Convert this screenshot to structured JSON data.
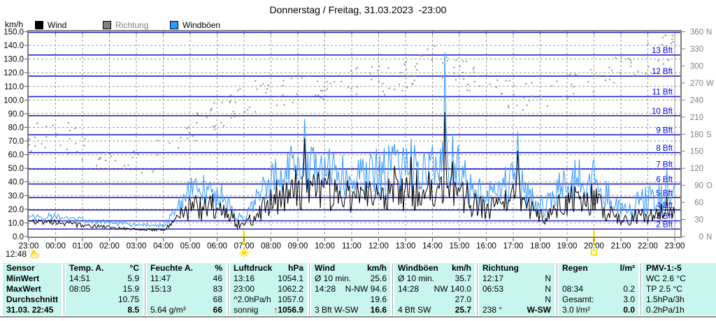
{
  "window": {
    "title": "Donnerstag / Freitag, 31.03.2023  -23:00"
  },
  "chart_data": {
    "type": "line",
    "title": "Donnerstag / Freitag, 31.03.2023  -23:00",
    "y_left_label": "km/h",
    "y_left": {
      "min": 0,
      "max": 150,
      "tick_step": 10
    },
    "y_right": {
      "unit": "degrees",
      "min": 0,
      "max": 360,
      "tick_step": 30,
      "direction_letters": {
        "0": "N",
        "90": "O",
        "180": "S",
        "270": "W",
        "360": "N"
      }
    },
    "x_tick_labels": [
      "23:00",
      "00:00",
      "01:00",
      "02:00",
      "03:00",
      "04:00",
      "05:00",
      "06:00",
      "07:00",
      "08:00",
      "09:00",
      "10:00",
      "11:00",
      "12:00",
      "13:00",
      "14:00",
      "15:00",
      "16:00",
      "17:00",
      "18:00",
      "19:00",
      "20:00",
      "21:00",
      "22:00",
      "23:00"
    ],
    "legend": [
      {
        "label": "Wind",
        "color": "#000000",
        "text_color": "#000000"
      },
      {
        "label": "Richtung",
        "color": "#808080",
        "text_color": "#808080"
      },
      {
        "label": "Windböen",
        "color": "#3399FF",
        "text_color": "#000000"
      }
    ],
    "beaufort_lines_kmh": [
      5.5,
      11.5,
      19.5,
      28.5,
      38.5,
      49.5,
      61.5,
      74.5,
      88.5,
      102.5,
      117.5,
      133.0,
      149.5
    ],
    "beaufort_labels": [
      {
        "bft": 2,
        "text": "2 Bft"
      },
      {
        "bft": 3,
        "text": "3 Bft"
      },
      {
        "bft": 4,
        "text": "4 Bft"
      },
      {
        "bft": 5,
        "text": "5 Bft"
      },
      {
        "bft": 6,
        "text": "6 Bft"
      },
      {
        "bft": 7,
        "text": "7 Bft"
      },
      {
        "bft": 8,
        "text": "8 Bft"
      },
      {
        "bft": 9,
        "text": "9 Bft"
      },
      {
        "bft": 10,
        "text": "10 Bft"
      },
      {
        "bft": 11,
        "text": "11 Bft"
      },
      {
        "bft": 12,
        "text": "12 Bft"
      },
      {
        "bft": 13,
        "text": "13 Bft"
      }
    ],
    "grid": {
      "h_dashed_every_kmh": 10,
      "v_dashed_every_hour": 1
    },
    "colors": {
      "wind_line": "#000000",
      "gust_line": "#3399FF",
      "direction_dots": "#8C8C8C",
      "beaufort_line": "#2222CC",
      "bft_label": "#0000E0",
      "grid_dashed": "#999999",
      "frame": "#808080",
      "right_axis_text": "#808080",
      "sun_marker": "#FFE000"
    },
    "sunshine_duration": "12:48",
    "sunrise_mark_label": "07:00",
    "sunset_mark_label": "20:00",
    "extremes": {
      "wind_max": {
        "time": "14:28",
        "dir": "N-NW",
        "kmh": 94.6
      },
      "gust_max": {
        "time": "14:28",
        "dir": "NW",
        "kmh": 140.0
      }
    },
    "series": [
      {
        "name": "Wind",
        "unit": "km/h",
        "hours_after_start": [
          0,
          1,
          2,
          3,
          4,
          5,
          6,
          7,
          8,
          9,
          10,
          11,
          12,
          13,
          14,
          15,
          16,
          17,
          18,
          19,
          20,
          21,
          22,
          23,
          24
        ],
        "hourly_mean_estimate": [
          11,
          11,
          8,
          7,
          5,
          5,
          20,
          22,
          7,
          27,
          36,
          33,
          28,
          30,
          33,
          35,
          32,
          18,
          30,
          14,
          26,
          27,
          11,
          16,
          20
        ]
      },
      {
        "name": "Windböen",
        "unit": "km/h",
        "hours_after_start": [
          0,
          1,
          2,
          3,
          4,
          5,
          6,
          7,
          8,
          9,
          10,
          11,
          12,
          13,
          14,
          15,
          16,
          17,
          18,
          19,
          20,
          21,
          22,
          23,
          24
        ],
        "hourly_mean_estimate": [
          13,
          15,
          12,
          10,
          8,
          8,
          30,
          33,
          13,
          38,
          50,
          46,
          40,
          45,
          48,
          50,
          46,
          27,
          44,
          20,
          38,
          40,
          17,
          26,
          30
        ]
      },
      {
        "name": "Richtung",
        "unit": "deg",
        "style": "scatter",
        "hours_after_start": [
          0,
          1,
          2,
          3,
          4,
          5,
          6,
          7,
          8,
          9,
          10,
          11,
          12,
          13,
          14,
          15,
          16,
          17,
          18,
          19,
          20,
          21,
          22,
          23,
          24
        ],
        "hourly_mean_estimate": [
          175,
          185,
          160,
          140,
          135,
          145,
          185,
          215,
          240,
          255,
          262,
          268,
          270,
          272,
          285,
          310,
          290,
          265,
          250,
          245,
          260,
          272,
          295,
          315,
          335
        ]
      }
    ],
    "gust_peaks_estimate": [
      {
        "hour": 6.2,
        "wind": 30,
        "gust": 43,
        "w": 0.12
      },
      {
        "hour": 10.25,
        "wind": 72,
        "gust": 86,
        "w": 0.06
      },
      {
        "hour": 11.15,
        "wind": 55,
        "gust": 72,
        "w": 0.05
      },
      {
        "hour": 13.6,
        "wind": 58,
        "gust": 76,
        "w": 0.05
      },
      {
        "hour": 14.2,
        "wind": 60,
        "gust": 74,
        "w": 0.05
      },
      {
        "hour": 15.467,
        "wind": 94.6,
        "gust": 140,
        "w": 0.045
      },
      {
        "hour": 15.75,
        "wind": 55,
        "gust": 75,
        "w": 0.04
      },
      {
        "hour": 18.17,
        "wind": 63,
        "gust": 77,
        "w": 0.07
      },
      {
        "hour": 20.3,
        "wind": 38,
        "gust": 58,
        "w": 0.05
      },
      {
        "hour": 23.7,
        "wind": 30,
        "gust": 50,
        "w": 0.06
      }
    ],
    "noise": {
      "seed": 7,
      "amp": 0.9,
      "calm_amp": 0.4,
      "calm_until_hour": 5.5,
      "points_per_hour": 24,
      "scatter_count": 270,
      "scatter_jitter_deg": 55
    }
  },
  "table": {
    "columns": [
      {
        "id": "sensor",
        "header_l": "Sensor",
        "header_r": "",
        "rows": [
          {
            "l": "MinWert",
            "r": ""
          },
          {
            "l": "MaxWert",
            "r": ""
          },
          {
            "l": "Durchschnitt",
            "r": ""
          },
          {
            "l": "31.03. 22:45",
            "r": ""
          }
        ]
      },
      {
        "id": "temp",
        "header_l": "Temp. A.",
        "header_r": "°C",
        "rows": [
          {
            "l": "14:51",
            "r": "5.9"
          },
          {
            "l": "08:05",
            "r": "15.9"
          },
          {
            "l": "",
            "r": "10.75"
          },
          {
            "l": "",
            "r": "8.5",
            "bold": true
          }
        ]
      },
      {
        "id": "feuchte",
        "header_l": "Feuchte A.",
        "header_r": "%",
        "rows": [
          {
            "l": "11:47",
            "r": "46"
          },
          {
            "l": "15:13",
            "r": "83"
          },
          {
            "l": "",
            "r": "68"
          },
          {
            "l": "5.64 g/m³",
            "r": "66",
            "bold": true
          }
        ]
      },
      {
        "id": "luftdruck",
        "header_l": "Luftdruck",
        "header_r": "hPa",
        "rows": [
          {
            "l": "13:16",
            "r": "1054.1"
          },
          {
            "l": "23:00",
            "r": "1062.2"
          },
          {
            "l": "^2.0hPa/h",
            "r": "1057.0"
          },
          {
            "l": "sonnig",
            "r": "1056.9",
            "arrow": "↑",
            "bold": true
          }
        ]
      },
      {
        "id": "wind",
        "header_l": "Wind",
        "header_r": "km/h",
        "rows": [
          {
            "l": "Ø 10 min.",
            "r": "25.6"
          },
          {
            "l": "14:28",
            "r": "N-NW 94.6"
          },
          {
            "l": "",
            "r": "19.6"
          },
          {
            "l": "3 Bft W-SW",
            "r": "16.6",
            "bold": true
          }
        ]
      },
      {
        "id": "windboeen",
        "header_l": "Windböen",
        "header_r": "km/h",
        "rows": [
          {
            "l": "Ø 10 min.",
            "r": "35.7"
          },
          {
            "l": "14:28",
            "r": "NW 140.0"
          },
          {
            "l": "",
            "r": "27.0"
          },
          {
            "l": "4 Bft SW",
            "r": "25.7",
            "bold": true
          }
        ]
      },
      {
        "id": "richtung",
        "header_l": "Richtung",
        "header_r": "",
        "rows": [
          {
            "l": "12:17",
            "r": "N"
          },
          {
            "l": "06:53",
            "r": "N"
          },
          {
            "l": "",
            "r": "N"
          },
          {
            "l": "238 °",
            "r": "W-SW",
            "bold": true
          }
        ]
      },
      {
        "id": "regen",
        "header_l": "Regen",
        "header_r": "l/m²",
        "rows": [
          {
            "l": "",
            "r": ""
          },
          {
            "l": "08:34",
            "r": "0.2"
          },
          {
            "l": "Gesamt:",
            "r": "3.0"
          },
          {
            "l": "3.0 l/m²",
            "r": "0.0",
            "bold": true
          }
        ]
      },
      {
        "id": "pmv",
        "header_l": "PMV-1:-5",
        "header_r": "",
        "rows": [
          {
            "l": "WC 2.6 °C",
            "r": ""
          },
          {
            "l": "TP 2.5 °C",
            "r": ""
          },
          {
            "l": "1.5hPa/3h",
            "r": ""
          },
          {
            "l": "0.2hPa/1h",
            "r": ""
          }
        ]
      }
    ]
  }
}
